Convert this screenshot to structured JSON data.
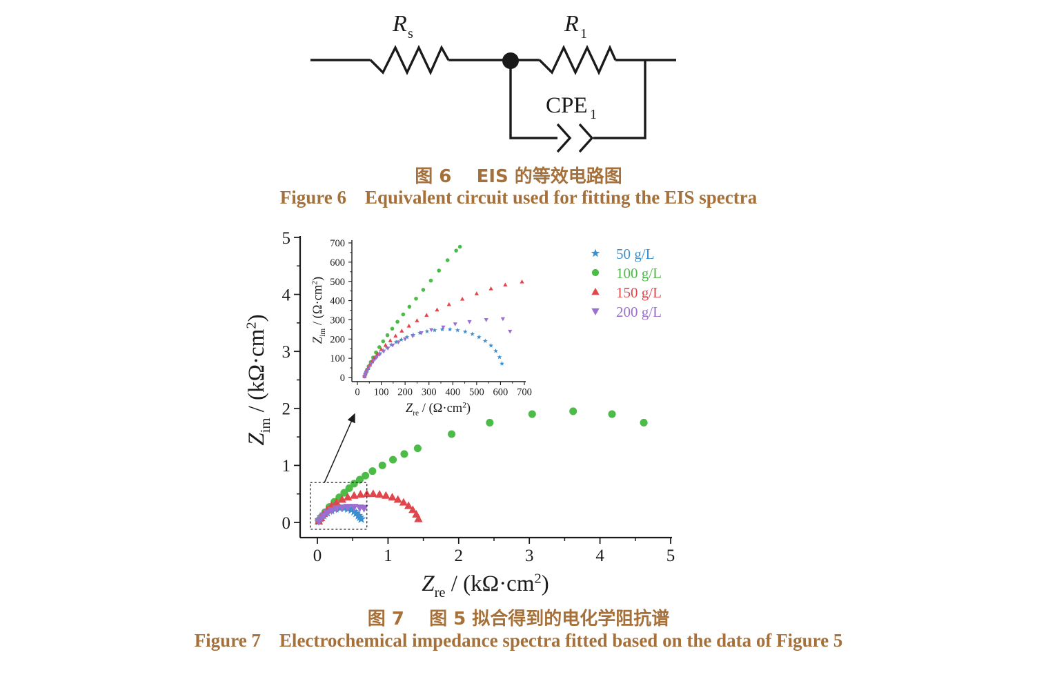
{
  "figure6": {
    "circuit": {
      "components": [
        {
          "id": "Rs",
          "symbol": "R",
          "sub": "s",
          "type": "resistor"
        },
        {
          "id": "R1",
          "symbol": "R",
          "sub": "1",
          "type": "resistor"
        },
        {
          "id": "CPE1",
          "symbol": "CPE",
          "sub": "1",
          "type": "constant-phase-element"
        }
      ]
    },
    "caption_cn": "图 6    EIS 的等效电路图",
    "caption_en": "Figure 6    Equivalent circuit used for fitting the EIS spectra"
  },
  "figure7": {
    "caption_cn": "图 7    图 5 拟合得到的电化学阻抗谱",
    "caption_en": "Figure 7    Electrochemical impedance spectra fitted based on the data of Figure 5"
  },
  "chart_data": [
    {
      "type": "scatter",
      "title": "",
      "xlabel": {
        "main": "Z",
        "sub": "re",
        "unit": " / (kΩ·cm",
        "sup": "2",
        "close": ")"
      },
      "ylabel": {
        "main": "Z",
        "sub": "im",
        "unit": " / (kΩ·cm",
        "sup": "2",
        "close": ")"
      },
      "xlim": [
        0,
        5
      ],
      "ylim": [
        0,
        5
      ],
      "xticks": [
        "0",
        "1",
        "2",
        "3",
        "4",
        "5"
      ],
      "yticks": [
        "0",
        "1",
        "2",
        "3",
        "4",
        "5"
      ],
      "grid": false,
      "legend": "top-right",
      "series": [
        {
          "name": "50 g/L",
          "marker": "star",
          "color": "#3a8fd0",
          "x": [
            0.02,
            0.05,
            0.09,
            0.14,
            0.2,
            0.26,
            0.32,
            0.38,
            0.43,
            0.48,
            0.52,
            0.55,
            0.58,
            0.6,
            0.62
          ],
          "y": [
            0.02,
            0.07,
            0.12,
            0.17,
            0.21,
            0.24,
            0.25,
            0.25,
            0.24,
            0.22,
            0.19,
            0.16,
            0.12,
            0.09,
            0.06
          ]
        },
        {
          "name": "100 g/L",
          "marker": "circle",
          "color": "#4cbb48",
          "x": [
            0.02,
            0.06,
            0.11,
            0.17,
            0.24,
            0.31,
            0.38,
            0.45,
            0.52,
            0.6,
            0.68,
            0.78,
            0.92,
            1.07,
            1.23,
            1.42,
            1.9,
            2.44,
            3.04,
            3.62,
            4.17,
            4.62
          ],
          "y": [
            0.03,
            0.1,
            0.18,
            0.27,
            0.36,
            0.44,
            0.52,
            0.6,
            0.68,
            0.75,
            0.82,
            0.9,
            1.0,
            1.1,
            1.2,
            1.3,
            1.55,
            1.75,
            1.9,
            1.95,
            1.9,
            1.75
          ]
        },
        {
          "name": "150 g/L",
          "marker": "triangle-up",
          "color": "#e0474c",
          "x": [
            0.02,
            0.05,
            0.09,
            0.14,
            0.2,
            0.27,
            0.35,
            0.43,
            0.52,
            0.61,
            0.7,
            0.79,
            0.88,
            0.97,
            1.06,
            1.14,
            1.22,
            1.29,
            1.35,
            1.4,
            1.43
          ],
          "y": [
            0.02,
            0.08,
            0.15,
            0.22,
            0.29,
            0.35,
            0.4,
            0.44,
            0.47,
            0.49,
            0.5,
            0.5,
            0.49,
            0.47,
            0.44,
            0.4,
            0.35,
            0.29,
            0.22,
            0.14,
            0.06
          ]
        },
        {
          "name": "200 g/L",
          "marker": "triangle-down",
          "color": "#9a6fcf",
          "x": [
            0.02,
            0.05,
            0.09,
            0.14,
            0.2,
            0.27,
            0.35,
            0.43,
            0.52,
            0.6,
            0.66
          ],
          "y": [
            0.02,
            0.07,
            0.12,
            0.17,
            0.21,
            0.24,
            0.26,
            0.27,
            0.27,
            0.26,
            0.25
          ]
        }
      ]
    },
    {
      "type": "scatter",
      "title": "inset",
      "xlabel": {
        "main": "Z",
        "sub": "re",
        "unit": " / (Ω·cm",
        "sup": "2",
        "close": ")"
      },
      "ylabel": {
        "main": "Z",
        "sub": "im",
        "unit": " / (Ω·cm",
        "sup": "2",
        "close": ")"
      },
      "xlim": [
        0,
        700
      ],
      "ylim": [
        0,
        700
      ],
      "xticks": [
        "0",
        "100",
        "200",
        "300",
        "400",
        "500",
        "600",
        "700"
      ],
      "yticks": [
        "0",
        "100",
        "200",
        "300",
        "400",
        "500",
        "600",
        "700"
      ],
      "grid": false,
      "series": [
        {
          "name": "50 g/L",
          "marker": "star",
          "color": "#3a8fd0",
          "x": [
            30,
            33,
            37,
            42,
            48,
            55,
            63,
            72,
            82,
            94,
            108,
            124,
            142,
            162,
            184,
            208,
            234,
            262,
            292,
            324,
            356,
            388,
            420,
            452,
            482,
            510,
            536,
            560,
            580,
            596,
            606
          ],
          "y": [
            5,
            15,
            27,
            40,
            54,
            68,
            82,
            97,
            111,
            126,
            140,
            155,
            170,
            184,
            197,
            210,
            222,
            232,
            240,
            246,
            250,
            250,
            246,
            238,
            226,
            210,
            190,
            166,
            138,
            106,
            72
          ]
        },
        {
          "name": "100 g/L",
          "marker": "circle",
          "color": "#4cbb48",
          "x": [
            30,
            34,
            40,
            47,
            56,
            66,
            78,
            92,
            108,
            126,
            146,
            168,
            192,
            218,
            246,
            276,
            308,
            342,
            378,
            414,
            430
          ],
          "y": [
            6,
            20,
            38,
            58,
            80,
            104,
            130,
            158,
            188,
            220,
            254,
            290,
            328,
            368,
            410,
            456,
            504,
            556,
            610,
            660,
            680
          ]
        },
        {
          "name": "150 g/L",
          "marker": "triangle-up",
          "color": "#e0474c",
          "x": [
            30,
            33,
            38,
            44,
            52,
            61,
            72,
            85,
            100,
            118,
            138,
            160,
            186,
            216,
            250,
            290,
            334,
            384,
            440,
            500,
            560,
            620,
            690
          ],
          "y": [
            6,
            18,
            32,
            48,
            66,
            84,
            104,
            124,
            146,
            168,
            192,
            216,
            242,
            268,
            296,
            324,
            352,
            380,
            408,
            436,
            462,
            482,
            498
          ]
        },
        {
          "name": "200 g/L",
          "marker": "triangle-down",
          "color": "#9a6fcf",
          "x": [
            30,
            33,
            37,
            43,
            50,
            58,
            68,
            80,
            94,
            110,
            128,
            148,
            172,
            200,
            232,
            268,
            310,
            360,
            410,
            470,
            540,
            610,
            640
          ],
          "y": [
            5,
            16,
            28,
            42,
            56,
            72,
            88,
            104,
            120,
            136,
            152,
            168,
            184,
            200,
            216,
            232,
            248,
            262,
            278,
            290,
            300,
            305,
            240
          ]
        }
      ]
    }
  ]
}
